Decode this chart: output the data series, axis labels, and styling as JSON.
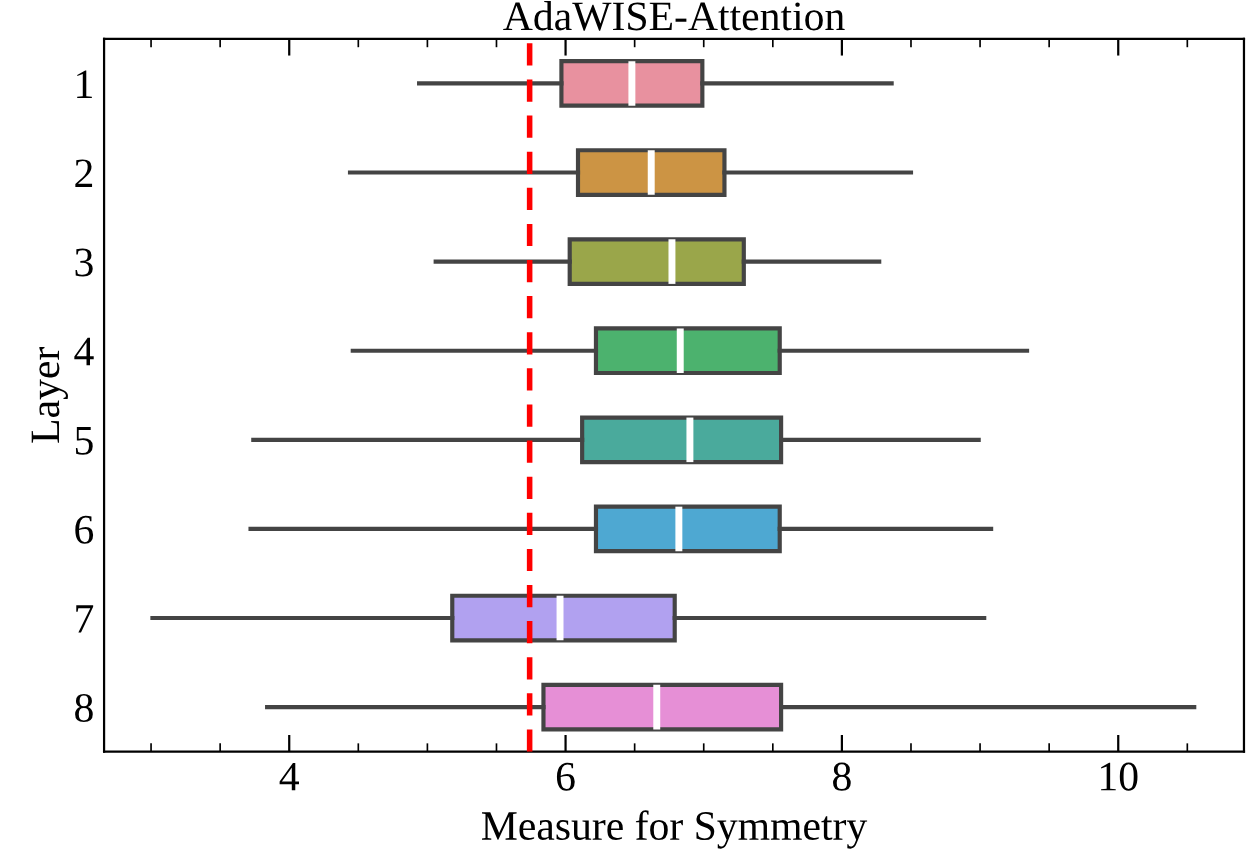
{
  "chart_data": {
    "type": "box",
    "orientation": "horizontal",
    "title": "AdaWISE-Attention",
    "xlabel": "Measure for Symmetry",
    "ylabel": "Layer",
    "categories": [
      "1",
      "2",
      "3",
      "4",
      "5",
      "6",
      "7",
      "8"
    ],
    "colors": [
      "#e8919f",
      "#cc9444",
      "#9aa64a",
      "#4cb26e",
      "#4aaa9c",
      "#4ea8d2",
      "#b1a1f0",
      "#e68fd6"
    ],
    "boxes": [
      {
        "low": 4.94,
        "q1": 5.97,
        "median": 6.48,
        "q3": 6.99,
        "high": 8.36
      },
      {
        "low": 4.44,
        "q1": 6.09,
        "median": 6.62,
        "q3": 7.15,
        "high": 8.5
      },
      {
        "low": 5.06,
        "q1": 6.03,
        "median": 6.77,
        "q3": 7.29,
        "high": 8.27
      },
      {
        "low": 4.46,
        "q1": 6.22,
        "median": 6.83,
        "q3": 7.55,
        "high": 9.34
      },
      {
        "low": 3.74,
        "q1": 6.12,
        "median": 6.9,
        "q3": 7.56,
        "high": 8.99
      },
      {
        "low": 3.72,
        "q1": 6.22,
        "median": 6.82,
        "q3": 7.55,
        "high": 9.08
      },
      {
        "low": 3.01,
        "q1": 5.18,
        "median": 5.96,
        "q3": 6.79,
        "high": 9.03
      },
      {
        "low": 3.84,
        "q1": 5.84,
        "median": 6.66,
        "q3": 7.56,
        "high": 10.55
      }
    ],
    "xlim": [
      2.66,
      10.91
    ],
    "xticks": [
      4,
      6,
      8,
      10
    ],
    "ref_lines": [
      {
        "axis": "x",
        "value": 5.74,
        "color": "#ff0000",
        "line_style": "dashed"
      }
    ],
    "grid": false
  }
}
